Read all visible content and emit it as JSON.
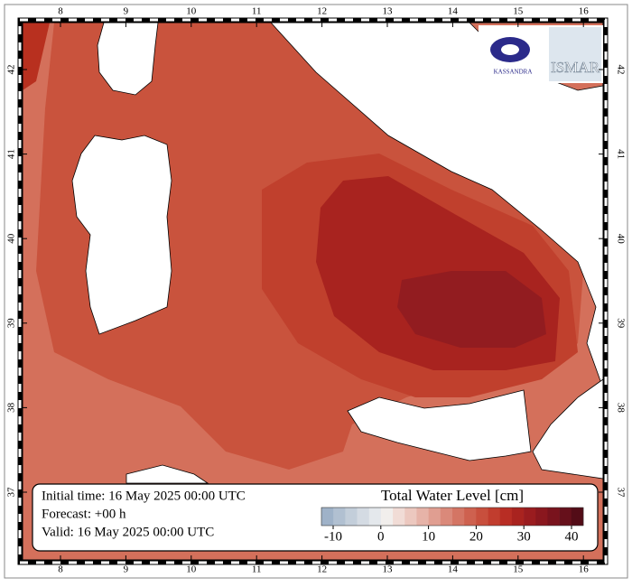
{
  "map": {
    "lon_ticks": [
      8,
      9,
      10,
      11,
      12,
      13,
      14,
      15,
      16
    ],
    "lat_ticks": [
      37,
      38,
      39,
      40,
      41,
      42
    ],
    "info": {
      "initial": "Initial time: 16 May 2025 00:00 UTC",
      "forecast": "Forecast: +00 h",
      "valid": "Valid: 16 May 2025 00:00 UTC"
    },
    "colorbar": {
      "title": "Total Water Level [cm]",
      "ticks": [
        -10,
        0,
        10,
        20,
        30,
        40
      ],
      "colors": [
        "#9fb2c8",
        "#b1c0d1",
        "#c3ceda",
        "#d4dbe3",
        "#e4e8ec",
        "#f1eeec",
        "#f1dcd6",
        "#ecc8bf",
        "#e6b3a8",
        "#e09e91",
        "#da897a",
        "#d47564",
        "#ce614f",
        "#c84f3d",
        "#c13d2e",
        "#b82d24",
        "#a9231f",
        "#9a1c1f",
        "#8a171e",
        "#79131d",
        "#66101b",
        "#530c17"
      ]
    },
    "logos": {
      "left": "KASSANDRA",
      "right": "ISMAR"
    }
  }
}
